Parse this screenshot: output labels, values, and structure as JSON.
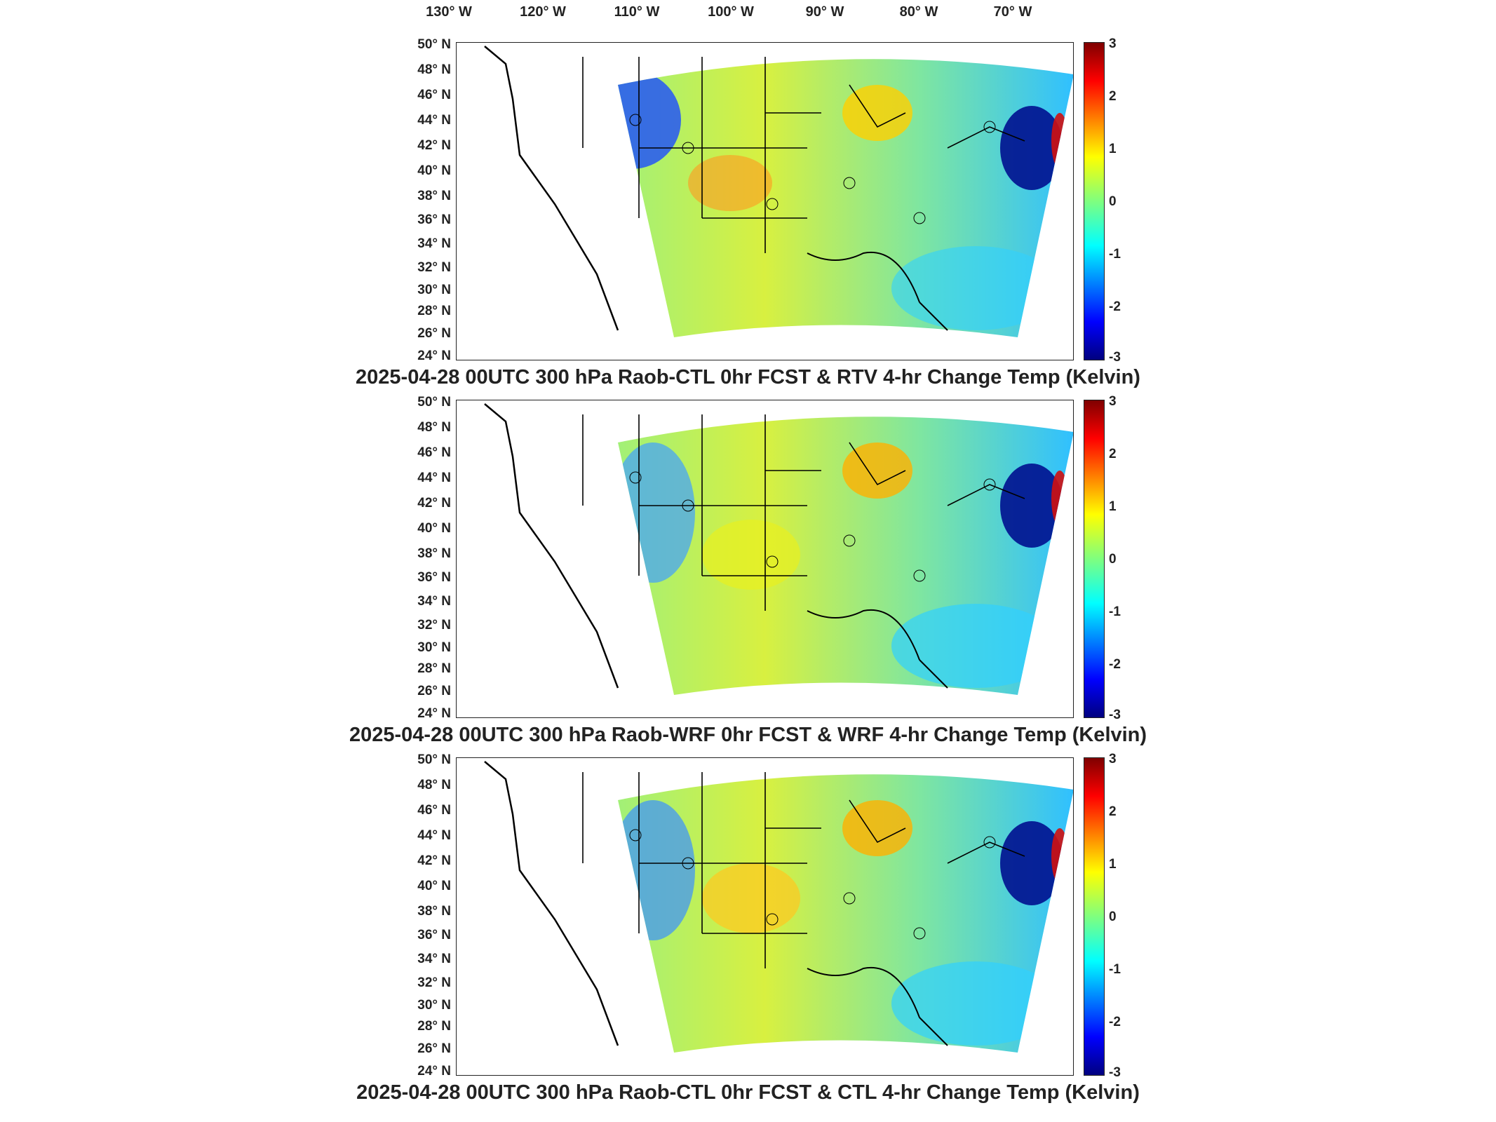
{
  "lon_labels": [
    "130° W",
    "120° W",
    "110° W",
    "100° W",
    "90° W",
    "80° W",
    "70° W"
  ],
  "lat_labels": [
    "50° N",
    "48° N",
    "46° N",
    "44° N",
    "42° N",
    "40° N",
    "38° N",
    "36° N",
    "34° N",
    "32° N",
    "30° N",
    "28° N",
    "26° N",
    "24° N"
  ],
  "colorbar": {
    "ticks": [
      "3",
      "2",
      "1",
      "0",
      "-1",
      "-2",
      "-3"
    ],
    "range": [
      -3,
      3
    ],
    "colormap": "jet",
    "colors": [
      "#00007f",
      "#0000ff",
      "#00ffff",
      "#7fff7f",
      "#ffff00",
      "#ff0000",
      "#7f0000"
    ]
  },
  "panels": [
    {
      "title": "2025-04-28 00UTC 300 hPa Raob-CTL 0hr FCST & RTV 4-hr Change Temp (Kelvin)"
    },
    {
      "title": "2025-04-28 00UTC 300 hPa Raob-WRF 0hr FCST & WRF 4-hr Change Temp (Kelvin)"
    },
    {
      "title": "2025-04-28 00UTC 300 hPa Raob-CTL 0hr FCST & CTL 4-hr Change Temp (Kelvin)"
    }
  ]
}
